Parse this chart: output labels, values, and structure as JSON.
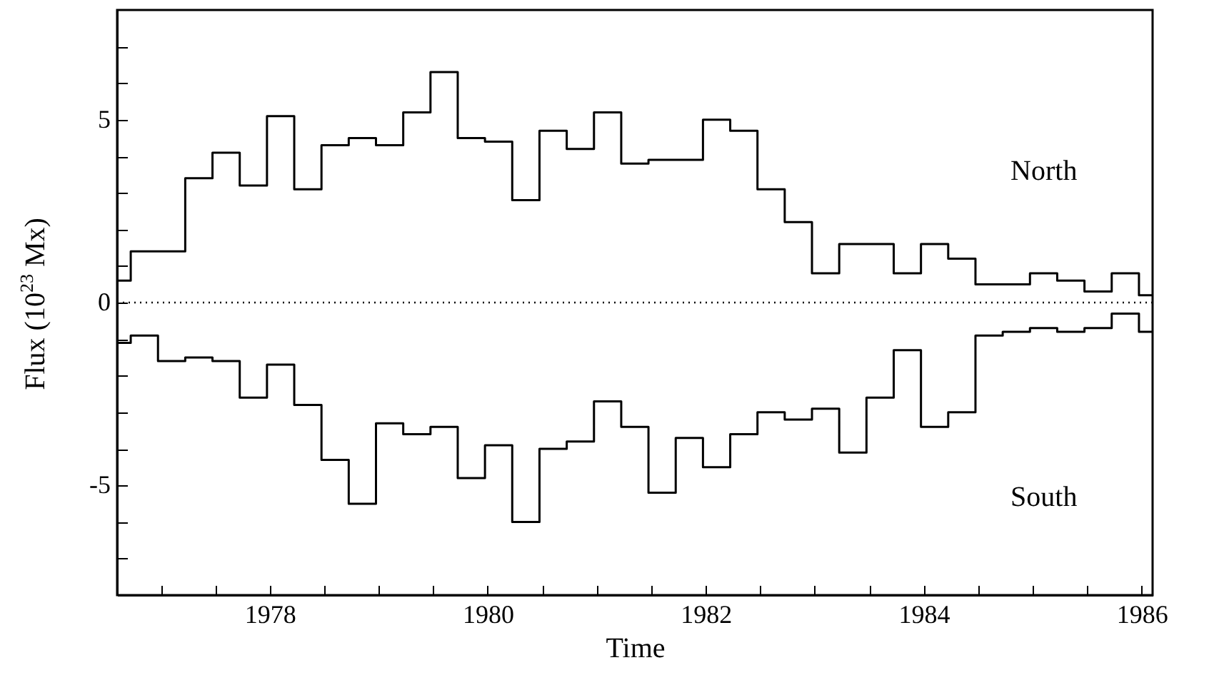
{
  "chart_data": {
    "type": "step",
    "xlabel": "Time",
    "ylabel": "Flux (10$^{23}$ Mx)",
    "x": [
      1976.6,
      1976.85,
      1977.1,
      1977.35,
      1977.6,
      1977.85,
      1978.1,
      1978.35,
      1978.6,
      1978.85,
      1979.1,
      1979.35,
      1979.6,
      1979.85,
      1980.1,
      1980.35,
      1980.6,
      1980.85,
      1981.1,
      1981.35,
      1981.6,
      1981.85,
      1982.1,
      1982.35,
      1982.6,
      1982.85,
      1983.1,
      1983.35,
      1983.6,
      1983.85,
      1984.1,
      1984.35,
      1984.6,
      1984.85,
      1985.1,
      1985.35,
      1985.6,
      1985.85,
      1986.1
    ],
    "series": [
      {
        "name": "North",
        "color": "#000000",
        "values": [
          0.6,
          1.4,
          1.4,
          3.4,
          4.1,
          3.2,
          5.1,
          3.1,
          4.3,
          4.5,
          4.3,
          5.2,
          6.3,
          4.5,
          4.4,
          2.8,
          4.7,
          4.2,
          5.2,
          3.8,
          3.9,
          3.9,
          5.0,
          4.7,
          3.1,
          2.2,
          0.8,
          1.6,
          1.6,
          0.8,
          1.6,
          1.2,
          0.5,
          0.5,
          0.8,
          0.6,
          0.3,
          0.8,
          0.2
        ]
      },
      {
        "name": "South",
        "color": "#000000",
        "values": [
          -1.1,
          -0.9,
          -1.6,
          -1.5,
          -1.6,
          -2.6,
          -1.7,
          -2.8,
          -4.3,
          -5.5,
          -3.3,
          -3.6,
          -3.4,
          -4.8,
          -3.9,
          -6.0,
          -4.0,
          -3.8,
          -2.7,
          -3.4,
          -5.2,
          -3.7,
          -4.5,
          -3.6,
          -3.0,
          -3.2,
          -2.9,
          -4.1,
          -2.6,
          -1.3,
          -3.4,
          -3.0,
          -0.9,
          -0.8,
          -0.7,
          -0.8,
          -0.7,
          -0.3,
          -0.8
        ]
      }
    ],
    "xlim": [
      1976.6,
      1986.1
    ],
    "xticks": [
      {
        "value": 1977,
        "label": null
      },
      {
        "value": 1977.5,
        "label": null
      },
      1978,
      {
        "value": 1978.5,
        "label": null
      },
      {
        "value": 1979,
        "label": null
      },
      {
        "value": 1979.5,
        "label": null
      },
      1980,
      {
        "value": 1980.5,
        "label": null
      },
      {
        "value": 1981,
        "label": null
      },
      {
        "value": 1981.5,
        "label": null
      },
      1982,
      {
        "value": 1982.5,
        "label": null
      },
      {
        "value": 1983,
        "label": null
      },
      {
        "value": 1983.5,
        "label": null
      },
      1984,
      {
        "value": 1984.5,
        "label": null
      },
      {
        "value": 1985,
        "label": null
      },
      {
        "value": 1985.5,
        "label": null
      },
      1986
    ],
    "ylim": [
      -8,
      8
    ],
    "yticks": [
      {
        "value": -7,
        "label": null
      },
      {
        "value": -6,
        "label": null
      },
      -5,
      {
        "value": -4,
        "label": null
      },
      {
        "value": -3,
        "label": null
      },
      {
        "value": -2,
        "label": null
      },
      {
        "value": -1,
        "label": null
      },
      0,
      {
        "value": 1,
        "label": null
      },
      {
        "value": 2,
        "label": null
      },
      {
        "value": 3,
        "label": null
      },
      {
        "value": 4,
        "label": null
      },
      5,
      {
        "value": 6,
        "label": null
      },
      {
        "value": 7,
        "label": null
      }
    ],
    "ref_lines": [
      {
        "axis": "y",
        "value": 0,
        "color": "#000000",
        "line_style": "dotted"
      }
    ],
    "grid": false,
    "legend": false,
    "marker": "none",
    "line_style": "solid"
  }
}
